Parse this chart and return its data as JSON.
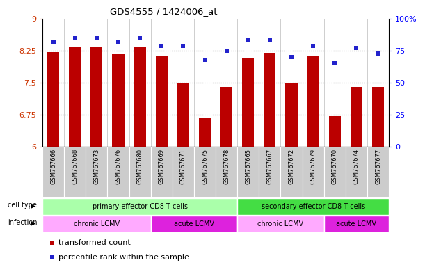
{
  "title": "GDS4555 / 1424006_at",
  "samples": [
    "GSM767666",
    "GSM767668",
    "GSM767673",
    "GSM767676",
    "GSM767680",
    "GSM767669",
    "GSM767671",
    "GSM767675",
    "GSM767678",
    "GSM767665",
    "GSM767667",
    "GSM767672",
    "GSM767679",
    "GSM767670",
    "GSM767674",
    "GSM767677"
  ],
  "bar_values": [
    8.22,
    8.35,
    8.35,
    8.17,
    8.35,
    8.12,
    7.48,
    6.68,
    7.4,
    8.08,
    8.2,
    7.48,
    8.12,
    6.72,
    7.4,
    7.4
  ],
  "scatter_values": [
    82,
    85,
    85,
    82,
    85,
    79,
    79,
    68,
    75,
    83,
    83,
    70,
    79,
    65,
    77,
    73
  ],
  "ymin": 6,
  "ymax": 9,
  "yticks_left": [
    6,
    6.75,
    7.5,
    8.25,
    9
  ],
  "ytick_labels_left": [
    "6",
    "6.75",
    "7.5",
    "8.25",
    "9"
  ],
  "yticks_right": [
    0,
    25,
    50,
    75,
    100
  ],
  "ytick_labels_right": [
    "0",
    "25",
    "50",
    "75",
    "100%"
  ],
  "bar_color": "#bb0000",
  "scatter_color": "#2222cc",
  "bg_color": "#ffffff",
  "cell_type_groups": [
    {
      "label": "primary effector CD8 T cells",
      "start": 0,
      "end": 9,
      "color": "#aaffaa"
    },
    {
      "label": "secondary effector CD8 T cells",
      "start": 9,
      "end": 16,
      "color": "#44dd44"
    }
  ],
  "infection_groups": [
    {
      "label": "chronic LCMV",
      "start": 0,
      "end": 5,
      "color": "#ffaaff"
    },
    {
      "label": "acute LCMV",
      "start": 5,
      "end": 9,
      "color": "#dd22dd"
    },
    {
      "label": "chronic LCMV",
      "start": 9,
      "end": 13,
      "color": "#ffaaff"
    },
    {
      "label": "acute LCMV",
      "start": 13,
      "end": 16,
      "color": "#dd22dd"
    }
  ],
  "legend_items": [
    {
      "label": "transformed count",
      "color": "#bb0000",
      "marker": "s"
    },
    {
      "label": "percentile rank within the sample",
      "color": "#2222cc",
      "marker": "s"
    }
  ],
  "cell_type_label": "cell type",
  "infection_label": "infection",
  "label_color_ct": "#000000",
  "label_color_inf": "#000000",
  "xtick_bg": "#cccccc",
  "xtick_fontsize": 6,
  "bar_width": 0.55
}
